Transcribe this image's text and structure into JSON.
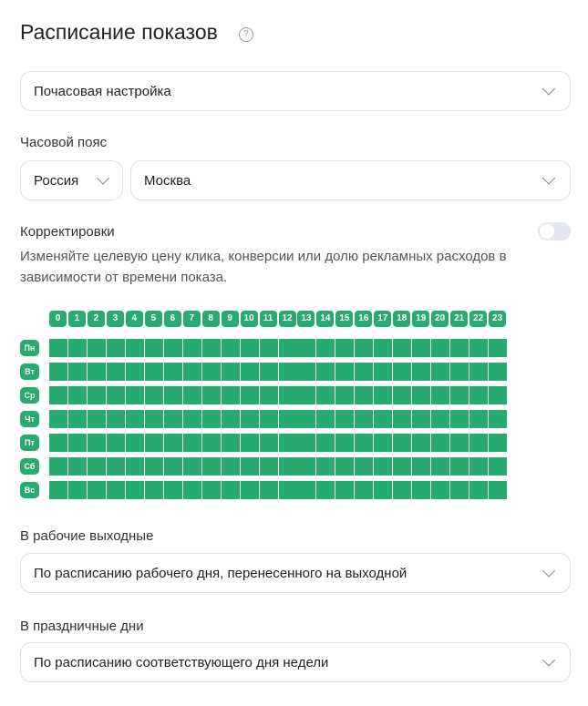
{
  "title": "Расписание показов",
  "mode_select": {
    "value": "Почасовая настройка"
  },
  "timezone": {
    "label": "Часовой пояс",
    "country": "Россия",
    "city": "Москва"
  },
  "adjustments": {
    "label": "Корректировки",
    "enabled": false,
    "description": "Изменяйте целевую цену клика, конверсии или долю рекламных расходов в зависимости от времени показа."
  },
  "schedule": {
    "hours": [
      "0",
      "1",
      "2",
      "3",
      "4",
      "5",
      "6",
      "7",
      "8",
      "9",
      "10",
      "11",
      "12",
      "13",
      "14",
      "15",
      "16",
      "17",
      "18",
      "19",
      "20",
      "21",
      "22",
      "23"
    ],
    "days": [
      "Пн",
      "Вт",
      "Ср",
      "Чт",
      "Пт",
      "Сб",
      "Вс"
    ],
    "active_color": "#27ab6e",
    "all_active": true
  },
  "working_weekends": {
    "label": "В рабочие выходные",
    "value": "По расписанию рабочего дня, перенесенного на выходной"
  },
  "holidays": {
    "label": "В праздничные дни",
    "value": "По расписанию соответствующего дня недели"
  }
}
